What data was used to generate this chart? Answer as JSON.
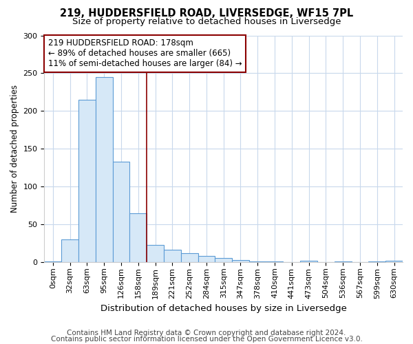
{
  "title1": "219, HUDDERSFIELD ROAD, LIVERSEDGE, WF15 7PL",
  "title2": "Size of property relative to detached houses in Liversedge",
  "xlabel": "Distribution of detached houses by size in Liversedge",
  "ylabel": "Number of detached properties",
  "categories": [
    "0sqm",
    "32sqm",
    "63sqm",
    "95sqm",
    "126sqm",
    "158sqm",
    "189sqm",
    "221sqm",
    "252sqm",
    "284sqm",
    "315sqm",
    "347sqm",
    "378sqm",
    "410sqm",
    "441sqm",
    "473sqm",
    "504sqm",
    "536sqm",
    "567sqm",
    "599sqm",
    "630sqm"
  ],
  "values": [
    1,
    30,
    215,
    245,
    133,
    65,
    23,
    16,
    12,
    8,
    5,
    3,
    1,
    1,
    0,
    2,
    0,
    1,
    0,
    1,
    2
  ],
  "bar_color": "#d6e8f7",
  "bar_edge_color": "#5b9bd5",
  "vline_x": 5.5,
  "vline_color": "#8b0000",
  "annotation_text": "219 HUDDERSFIELD ROAD: 178sqm\n← 89% of detached houses are smaller (665)\n11% of semi-detached houses are larger (84) →",
  "annotation_box_color": "#ffffff",
  "annotation_box_edge": "#8b0000",
  "ylim": [
    0,
    300
  ],
  "yticks": [
    0,
    50,
    100,
    150,
    200,
    250,
    300
  ],
  "footer1": "Contains HM Land Registry data © Crown copyright and database right 2024.",
  "footer2": "Contains public sector information licensed under the Open Government Licence v3.0.",
  "bg_color": "#ffffff",
  "plot_bg_color": "#ffffff",
  "grid_color": "#c8d8ec",
  "title1_fontsize": 10.5,
  "title2_fontsize": 9.5,
  "xlabel_fontsize": 9.5,
  "ylabel_fontsize": 8.5,
  "tick_fontsize": 8,
  "annotation_fontsize": 8.5,
  "footer_fontsize": 7.5
}
